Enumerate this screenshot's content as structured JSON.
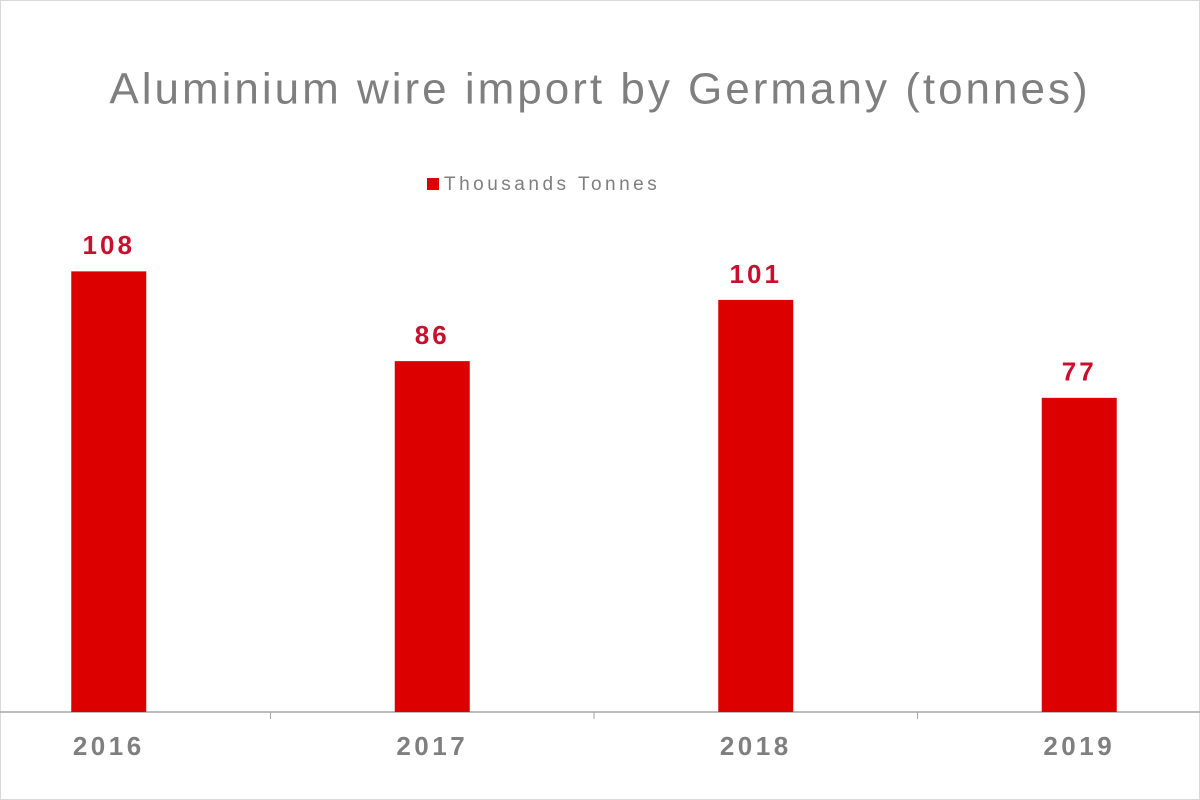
{
  "chart_data": {
    "type": "bar",
    "title": "Aluminium wire import by Germany (tonnes)",
    "categories": [
      "2016",
      "2017",
      "2018",
      "2019"
    ],
    "series": [
      {
        "name": "Thousands Tonnes",
        "color": "#dd0000",
        "values": [
          108,
          86,
          101,
          77
        ]
      }
    ]
  }
}
